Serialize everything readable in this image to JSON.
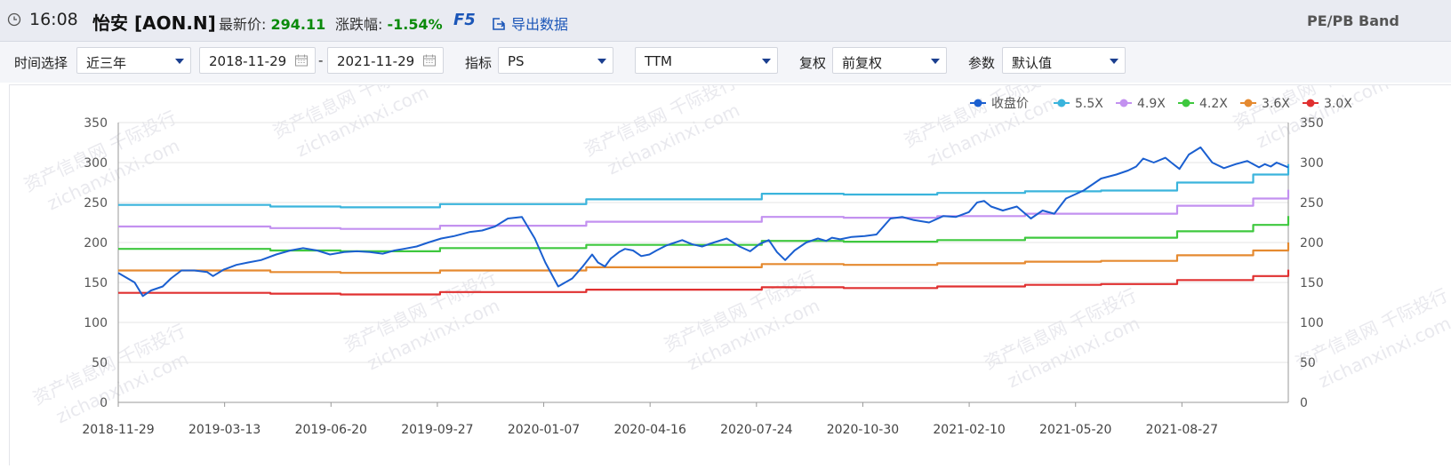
{
  "header": {
    "time": "16:08",
    "title": "怡安 [AON.N]",
    "price_label": "最新价:",
    "price_value": "294.11",
    "change_label": "涨跌幅:",
    "change_value": "-1.54%",
    "f5_label": "F5",
    "export_label": "导出数据",
    "band_label": "PE/PB Band"
  },
  "filters": {
    "time_label": "时间选择",
    "time_value": "近三年",
    "start_date": "2018-11-29",
    "separator": "-",
    "end_date": "2021-11-29",
    "indicator_label": "指标",
    "indicator_value": "PS",
    "period_value": "TTM",
    "adjust_label": "复权",
    "adjust_value": "前复权",
    "param_label": "参数",
    "param_value": "默认值"
  },
  "colors": {
    "close": "#1a5fd0",
    "b55": "#3ab4dc",
    "b49": "#c391f0",
    "b42": "#3ec83e",
    "b36": "#e58a30",
    "b30": "#e03030",
    "accent": "#1b56b8",
    "up_green": "#0a8a0a"
  },
  "watermark": {
    "line1": "资产信息网 千际投行",
    "line2": "zichanxinxi.com"
  },
  "chart_data": {
    "type": "line",
    "x_tick_labels": [
      "2018-11-29",
      "2019-03-13",
      "2019-06-20",
      "2019-09-27",
      "2020-01-07",
      "2020-04-16",
      "2020-07-24",
      "2020-10-30",
      "2021-02-10",
      "2021-05-20",
      "2021-08-27"
    ],
    "y_ticks": [
      0,
      50,
      100,
      150,
      200,
      250,
      300,
      350
    ],
    "ylim": [
      0,
      350
    ],
    "xlim": [
      0,
      1.0
    ],
    "legend_position": "top-right",
    "grid": true,
    "series": [
      {
        "name": "收盘价",
        "key": "close",
        "x": [
          0,
          0.014,
          0.021,
          0.028,
          0.038,
          0.045,
          0.054,
          0.065,
          0.076,
          0.081,
          0.09,
          0.101,
          0.111,
          0.122,
          0.135,
          0.147,
          0.158,
          0.17,
          0.181,
          0.193,
          0.204,
          0.215,
          0.226,
          0.236,
          0.244,
          0.255,
          0.265,
          0.276,
          0.287,
          0.3,
          0.311,
          0.322,
          0.333,
          0.345,
          0.356,
          0.365,
          0.376,
          0.388,
          0.397,
          0.405,
          0.41,
          0.416,
          0.421,
          0.428,
          0.433,
          0.44,
          0.447,
          0.454,
          0.46,
          0.468,
          0.476,
          0.482,
          0.49,
          0.499,
          0.509,
          0.52,
          0.531,
          0.54,
          0.548,
          0.556,
          0.563,
          0.57,
          0.578,
          0.588,
          0.598,
          0.605,
          0.61,
          0.617,
          0.627,
          0.638,
          0.648,
          0.66,
          0.67,
          0.68,
          0.693,
          0.705,
          0.716,
          0.727,
          0.734,
          0.74,
          0.746,
          0.756,
          0.768,
          0.78,
          0.79,
          0.8,
          0.81,
          0.825,
          0.84,
          0.853,
          0.863,
          0.87,
          0.876,
          0.885,
          0.895,
          0.9,
          0.907,
          0.915,
          0.925,
          0.935,
          0.945,
          0.955,
          0.965,
          0.975,
          0.98,
          0.985,
          0.99,
          1.0
        ],
        "y": [
          162,
          150,
          133,
          140,
          145,
          155,
          165,
          165,
          163,
          158,
          166,
          172,
          175,
          178,
          185,
          190,
          193,
          190,
          185,
          188,
          189,
          188,
          186,
          190,
          192,
          195,
          200,
          205,
          208,
          213,
          215,
          220,
          230,
          232,
          205,
          175,
          145,
          155,
          170,
          185,
          175,
          170,
          180,
          188,
          192,
          190,
          183,
          185,
          190,
          196,
          200,
          203,
          198,
          195,
          200,
          205,
          195,
          189,
          198,
          203,
          188,
          178,
          190,
          200,
          205,
          202,
          206,
          204,
          207,
          208,
          210,
          230,
          232,
          228,
          225,
          233,
          232,
          238,
          250,
          252,
          245,
          240,
          245,
          230,
          240,
          236,
          255,
          265,
          280,
          285,
          290,
          295,
          305,
          300,
          306,
          300,
          292,
          310,
          319,
          300,
          293,
          298,
          302,
          294,
          298,
          295,
          300,
          294
        ]
      },
      {
        "name": "5.5X",
        "key": "b55",
        "x": [
          0,
          0.075,
          0.13,
          0.19,
          0.275,
          0.4,
          0.55,
          0.62,
          0.7,
          0.775,
          0.84,
          0.905,
          0.97,
          1.0
        ],
        "y": [
          247,
          247,
          245,
          244,
          248,
          254,
          261,
          260,
          262,
          264,
          265,
          275,
          285,
          298
        ]
      },
      {
        "name": "4.9X",
        "key": "b49",
        "x": [
          0,
          0.075,
          0.13,
          0.19,
          0.275,
          0.4,
          0.55,
          0.62,
          0.7,
          0.775,
          0.84,
          0.905,
          0.97,
          1.0
        ],
        "y": [
          220,
          220,
          218,
          217,
          221,
          226,
          232,
          231,
          233,
          236,
          236,
          246,
          255,
          266
        ]
      },
      {
        "name": "4.2X",
        "key": "b42",
        "x": [
          0,
          0.075,
          0.13,
          0.19,
          0.275,
          0.4,
          0.55,
          0.62,
          0.7,
          0.775,
          0.84,
          0.905,
          0.97,
          1.0
        ],
        "y": [
          192,
          192,
          190,
          189,
          193,
          197,
          202,
          201,
          203,
          206,
          206,
          214,
          222,
          233
        ]
      },
      {
        "name": "3.6X",
        "key": "b36",
        "x": [
          0,
          0.075,
          0.13,
          0.19,
          0.275,
          0.4,
          0.55,
          0.62,
          0.7,
          0.775,
          0.84,
          0.905,
          0.97,
          1.0
        ],
        "y": [
          165,
          165,
          163,
          162,
          165,
          169,
          173,
          172,
          174,
          176,
          177,
          184,
          190,
          200
        ]
      },
      {
        "name": "3.0X",
        "key": "b30",
        "x": [
          0,
          0.075,
          0.13,
          0.19,
          0.275,
          0.4,
          0.55,
          0.62,
          0.7,
          0.775,
          0.84,
          0.905,
          0.97,
          1.0
        ],
        "y": [
          137,
          137,
          136,
          135,
          138,
          141,
          144,
          143,
          145,
          147,
          148,
          153,
          158,
          166
        ]
      }
    ]
  }
}
